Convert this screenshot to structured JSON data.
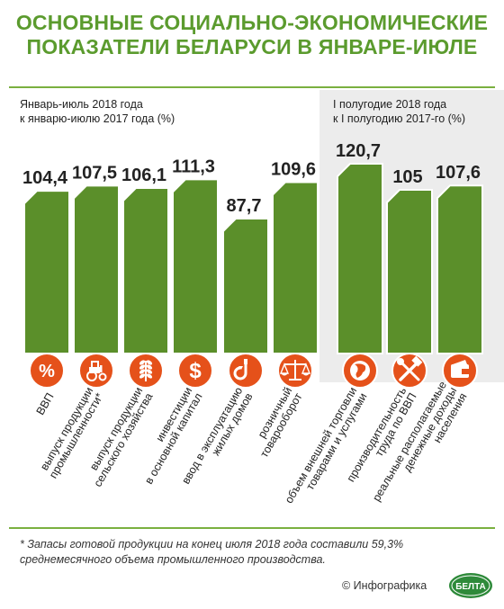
{
  "header": {
    "title_line1": "ОСНОВНЫЕ СОЦИАЛЬНО-ЭКОНОМИЧЕСКИЕ",
    "title_line2": "ПОКАЗАТЕЛИ БЕЛАРУСИ В ЯНВАРЕ-ИЮЛЕ"
  },
  "left_panel": {
    "subtitle_line1": "Январь-июль 2018 года",
    "subtitle_line2": "к январю-июлю 2017 года (%)"
  },
  "right_panel": {
    "subtitle_line1": "I полугодие 2018 года",
    "subtitle_line2": "к I полугодию 2017-го (%)"
  },
  "colors": {
    "bar": "#5b8f2a",
    "bar_border": "#ffffff",
    "icon_circle": "#e5511a",
    "title": "#5b9b2e",
    "divider": "#7ab03f",
    "right_panel_bg": "#ececec"
  },
  "chart_data": {
    "type": "bar",
    "ylim": [
      80,
      125
    ],
    "groups": [
      {
        "name": "Январь-июль 2018 года к январю-июлю 2017 года (%)",
        "categories": [
          {
            "lines": [
              "ВВП"
            ],
            "value": 104.4,
            "label": "104,4",
            "icon": "percent-icon"
          },
          {
            "lines": [
              "выпуск продукции",
              "промышленности*"
            ],
            "value": 107.5,
            "label": "107,5",
            "icon": "tractor-icon"
          },
          {
            "lines": [
              "выпуск продукции",
              "сельского хозяйства"
            ],
            "value": 106.1,
            "label": "106,1",
            "icon": "wheat-icon"
          },
          {
            "lines": [
              "инвестиции",
              "в основной капитал"
            ],
            "value": 111.3,
            "label": "111,3",
            "icon": "dollar-icon"
          },
          {
            "lines": [
              "ввод в эксплуатацию",
              "жилых домов"
            ],
            "value": 87.7,
            "label": "87,7",
            "icon": "crane-hook-icon"
          },
          {
            "lines": [
              "розничный",
              "товарооборот"
            ],
            "value": 109.6,
            "label": "109,6",
            "icon": "scales-icon"
          }
        ]
      },
      {
        "name": "I полугодие 2018 года к I полугодию 2017-го (%)",
        "categories": [
          {
            "lines": [
              "объем внешней торговли",
              "товарами и услугами"
            ],
            "value": 120.7,
            "label": "120,7",
            "icon": "globe-icon"
          },
          {
            "lines": [
              "производительность",
              "труда по ВВП"
            ],
            "value": 105,
            "label": "105",
            "icon": "tools-icon"
          },
          {
            "lines": [
              "реальные располагаемые",
              "денежные доходы",
              "населения"
            ],
            "value": 107.6,
            "label": "107,6",
            "icon": "wallet-icon"
          }
        ]
      }
    ]
  },
  "footer": {
    "footnote": "* Запасы готовой продукции на конец июля 2018 года составили 59,3% среднемесячного объема промышленного производства.",
    "credit": "© Инфографика",
    "logo_text": "БЕЛТА"
  }
}
